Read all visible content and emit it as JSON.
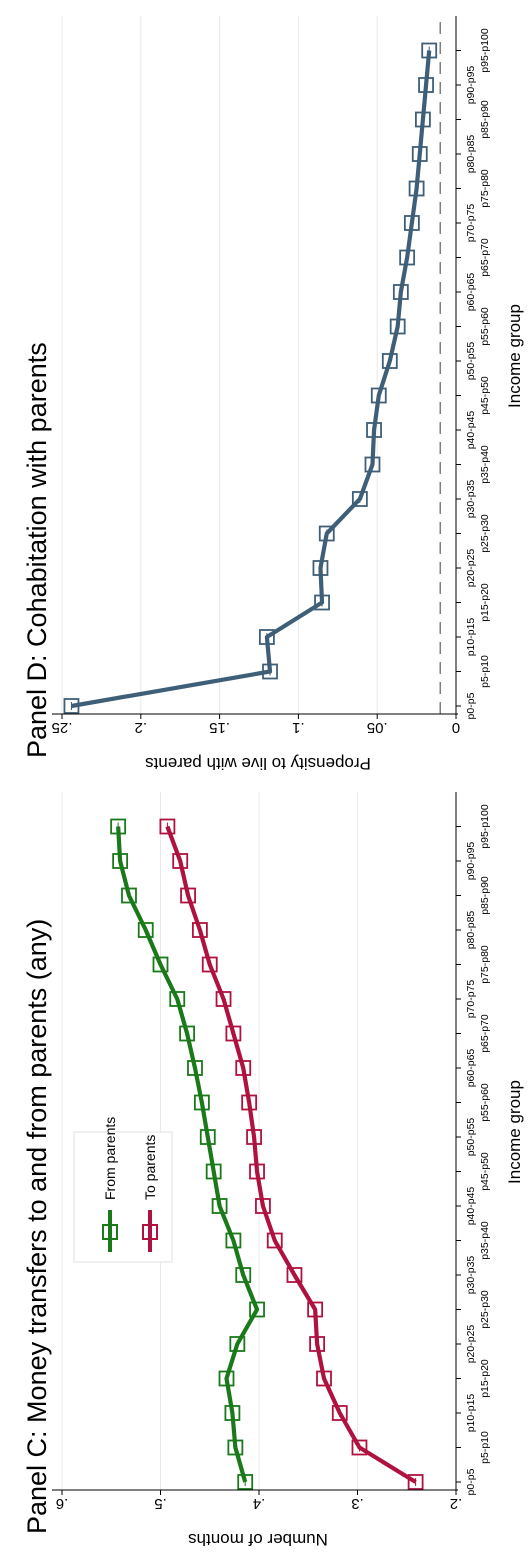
{
  "chart_data": [
    {
      "type": "line",
      "title": "Panel C: Money transfers to and from parents (any)",
      "xlabel": "Income group",
      "ylabel": "Number of months",
      "ylim": [
        0.2,
        0.6
      ],
      "yticks": [
        ".2",
        ".3",
        ".4",
        ".5",
        ".6"
      ],
      "grid": true,
      "legend": "inside-top",
      "categories": [
        "p0-p5",
        "p5-p10",
        "p10-p15",
        "p15-p20",
        "p20-p25",
        "p25-p30",
        "p30-p35",
        "p35-p40",
        "p40-p45",
        "p45-p50",
        "p50-p55",
        "p55-p60",
        "p60-p65",
        "p65-p70",
        "p70-p75",
        "p75-p80",
        "p80-p85",
        "p85-p90",
        "p90-p95",
        "p95-p100"
      ],
      "series": [
        {
          "name": "From parents",
          "color": "#1a7a1a",
          "values": [
            0.414,
            0.424,
            0.427,
            0.433,
            0.422,
            0.402,
            0.416,
            0.426,
            0.44,
            0.446,
            0.452,
            0.458,
            0.465,
            0.473,
            0.483,
            0.5,
            0.515,
            0.532,
            0.541,
            0.543
          ]
        },
        {
          "name": "To parents",
          "color": "#b0123f",
          "values": [
            0.241,
            0.298,
            0.318,
            0.334,
            0.341,
            0.343,
            0.364,
            0.384,
            0.396,
            0.402,
            0.405,
            0.41,
            0.416,
            0.426,
            0.436,
            0.45,
            0.46,
            0.472,
            0.48,
            0.493
          ]
        }
      ]
    },
    {
      "type": "line",
      "title": "Panel D: Cohabitation with parents",
      "xlabel": "Income group",
      "ylabel": "Propensity to live with parents",
      "ylim": [
        0,
        0.25
      ],
      "yticks": [
        "0",
        ".05",
        ".1",
        ".15",
        ".2",
        ".25"
      ],
      "grid": true,
      "reference_line": 0.01,
      "categories": [
        "p0-p5",
        "p5-p10",
        "p10-p15",
        "p15-p20",
        "p20-p25",
        "p25-p30",
        "p30-p35",
        "p35-p40",
        "p40-p45",
        "p45-p50",
        "p50-p55",
        "p55-p60",
        "p60-p65",
        "p65-p70",
        "p70-p75",
        "p75-p80",
        "p80-p85",
        "p85-p90",
        "p90-p95",
        "p95-p100"
      ],
      "series": [
        {
          "name": "",
          "color": "#3f5f78",
          "values": [
            0.244,
            0.118,
            0.12,
            0.085,
            0.086,
            0.082,
            0.061,
            0.053,
            0.052,
            0.049,
            0.042,
            0.037,
            0.035,
            0.031,
            0.028,
            0.025,
            0.023,
            0.021,
            0.019,
            0.017
          ]
        }
      ]
    }
  ]
}
